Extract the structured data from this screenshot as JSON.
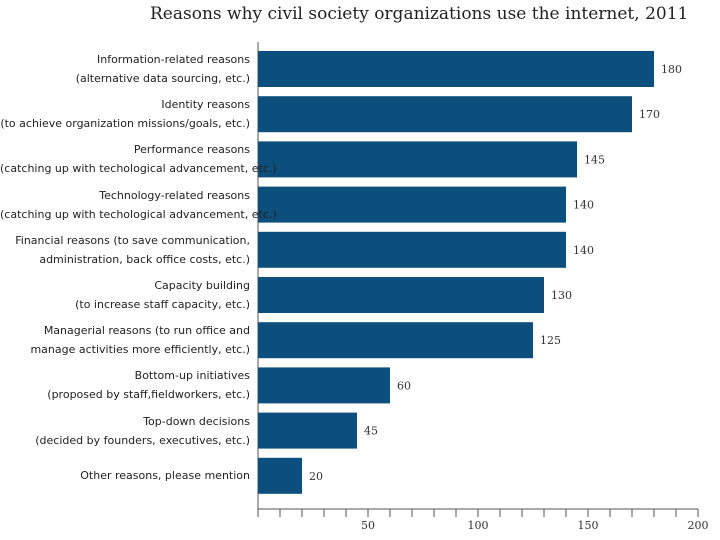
{
  "title": "Reasons why civil society organizations use the internet, 2011",
  "chart_data": {
    "type": "bar",
    "orientation": "horizontal",
    "title": "Reasons why civil society organizations use the internet, 2011",
    "categories": [
      [
        "Information-related reasons",
        "(alternative data sourcing, etc.)"
      ],
      [
        "Identity reasons",
        "(to achieve organization missions/goals, etc.)"
      ],
      [
        "Performance reasons",
        "(catching up with techological advancement, etc.)"
      ],
      [
        "Technology-related reasons",
        "(catching up with techological advancement, etc.)"
      ],
      [
        "Financial reasons (to save communication,",
        "administration, back office costs, etc.)"
      ],
      [
        "Capacity building",
        "(to increase staff capacity, etc.)"
      ],
      [
        "Managerial reasons (to run office and",
        "manage activities more efficiently, etc.)"
      ],
      [
        "Bottom-up initiatives",
        "(proposed by staff,fieldworkers, etc.)"
      ],
      [
        "Top-down decisions",
        "(decided by founders, executives, etc.)"
      ],
      [
        "Other reasons, please mention"
      ]
    ],
    "values": [
      180,
      170,
      145,
      140,
      140,
      130,
      125,
      60,
      45,
      20
    ],
    "xlim": [
      0,
      200
    ],
    "xticks": [
      50,
      100,
      150,
      200
    ],
    "xlabel": "",
    "ylabel": "",
    "bar_color": "#0d4f7c"
  }
}
